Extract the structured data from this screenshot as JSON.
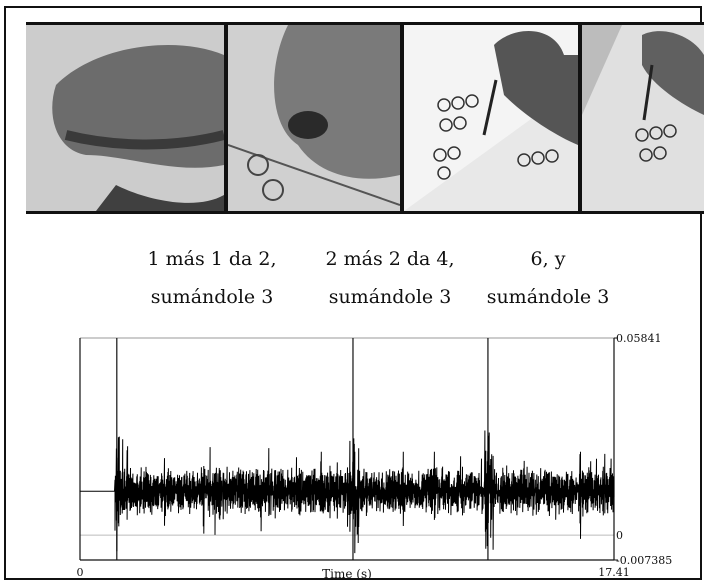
{
  "photos": [
    {
      "alt": "close-up of hand writing on worksheet 1"
    },
    {
      "alt": "close-up of hand writing on worksheet 2"
    },
    {
      "alt": "hand with pencil over worksheet with circle figures"
    },
    {
      "alt": "hand writing on worksheet, cropped"
    }
  ],
  "captions": [
    {
      "line1": "1 más 1 da 2,",
      "line2": "sumándole 3"
    },
    {
      "line1": "2 más 2 da 4,",
      "line2": "sumándole 3"
    },
    {
      "line1": "6, y",
      "line2": "sumándole 3"
    }
  ],
  "chart_data": {
    "type": "line",
    "xlabel": "Time (s)",
    "ylabel": "",
    "xlim": [
      0,
      17.41
    ],
    "ylim": [
      -0.007385,
      0.05841
    ],
    "x_tick_labels": [
      "0",
      "17.41"
    ],
    "y_tick_labels": [
      "0.05841",
      "0",
      "-0.007385"
    ],
    "segment_markers_s": [
      1.2,
      8.9,
      13.3
    ],
    "series": [
      {
        "description_values_baseline": 0.013,
        "values_note": "audio waveform amplitude"
      }
    ]
  }
}
